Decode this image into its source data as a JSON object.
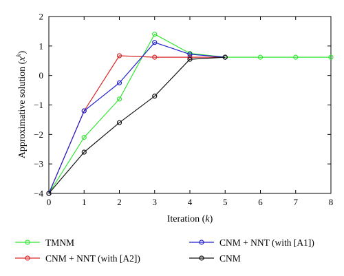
{
  "chart_data": {
    "type": "line",
    "xlabel": "Iteration",
    "xlabel_var": "k",
    "ylabel": "Approximative solution",
    "ylabel_var": "x",
    "ylabel_sup": "k",
    "xlim": [
      0,
      8
    ],
    "ylim": [
      -4,
      2
    ],
    "x_ticks": [
      0,
      1,
      2,
      3,
      4,
      5,
      6,
      7,
      8
    ],
    "y_ticks": [
      -4,
      -3,
      -2,
      -1,
      0,
      1,
      2
    ],
    "grid": false,
    "legend_position": "below",
    "series": [
      {
        "name": "TMNM",
        "color": "#33e633",
        "marker": "circle",
        "x": [
          0,
          1,
          2,
          3,
          4,
          5,
          6,
          7,
          8
        ],
        "y": [
          -4.0,
          -2.1,
          -0.8,
          1.4,
          0.75,
          0.62,
          0.62,
          0.62,
          0.62
        ]
      },
      {
        "name": "CNM + NNT (with [A2])",
        "color": "#d62728",
        "marker": "circle",
        "x": [
          0,
          1,
          2,
          3,
          4,
          5
        ],
        "y": [
          -4.0,
          -1.2,
          0.67,
          0.62,
          0.62,
          0.62
        ]
      },
      {
        "name": "CNM + NNT (with [A1])",
        "color": "#1f1fcc",
        "marker": "circle",
        "x": [
          0,
          1,
          2,
          3,
          4,
          5
        ],
        "y": [
          -4.0,
          -1.2,
          -0.25,
          1.12,
          0.72,
          0.62
        ]
      },
      {
        "name": "CNM",
        "color": "#111111",
        "marker": "circle",
        "x": [
          0,
          1,
          2,
          3,
          4,
          5
        ],
        "y": [
          -4.0,
          -2.6,
          -1.6,
          -0.7,
          0.55,
          0.62
        ]
      }
    ]
  }
}
